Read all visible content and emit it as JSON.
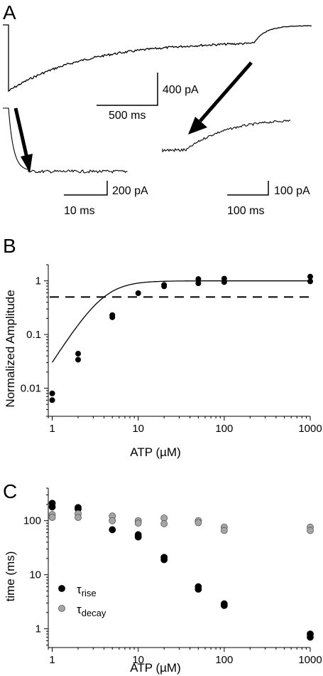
{
  "panels": {
    "A": {
      "label": "A",
      "scale_bars": [
        {
          "time": "500 ms",
          "current": "400 pA"
        },
        {
          "time": "10 ms",
          "current": "200 pA"
        },
        {
          "time": "100 ms",
          "current": "100 pA"
        }
      ]
    },
    "B": {
      "label": "B"
    },
    "C": {
      "label": "C"
    }
  },
  "chart_data": [
    {
      "type": "scatter",
      "panel": "B",
      "title": "",
      "xlabel": "ATP (µM)",
      "ylabel": "Normalized Amplitude",
      "xscale": "log",
      "yscale": "log",
      "xlim": [
        0.9,
        1000
      ],
      "ylim": [
        0.003,
        2
      ],
      "xticks": [
        1,
        10,
        100,
        1000
      ],
      "xtick_labels": [
        "1",
        "10",
        "100",
        "1000"
      ],
      "yticks": [
        0.01,
        0.1,
        1
      ],
      "ytick_labels": [
        "0.01",
        "0.1",
        "1"
      ],
      "reference_line": {
        "y": 0.5,
        "style": "dashed"
      },
      "points": [
        {
          "x": 1,
          "y": 0.008
        },
        {
          "x": 1,
          "y": 0.006
        },
        {
          "x": 2,
          "y": 0.044
        },
        {
          "x": 2,
          "y": 0.034
        },
        {
          "x": 5,
          "y": 0.23
        },
        {
          "x": 5,
          "y": 0.21
        },
        {
          "x": 10,
          "y": 0.59
        },
        {
          "x": 20,
          "y": 0.84
        },
        {
          "x": 20,
          "y": 0.79
        },
        {
          "x": 50,
          "y": 1.08
        },
        {
          "x": 50,
          "y": 0.9
        },
        {
          "x": 100,
          "y": 1.1
        },
        {
          "x": 100,
          "y": 0.95
        },
        {
          "x": 1000,
          "y": 1.2
        },
        {
          "x": 1000,
          "y": 0.98
        }
      ],
      "fit": {
        "ec50": 4,
        "hill": 2.5,
        "max": 1
      }
    },
    {
      "type": "scatter",
      "panel": "C",
      "title": "",
      "xlabel": "ATP (µM)",
      "ylabel": "time (ms)",
      "xscale": "log",
      "yscale": "log",
      "xlim": [
        0.9,
        1000
      ],
      "ylim": [
        0.45,
        400
      ],
      "xticks": [
        1,
        10,
        100,
        1000
      ],
      "xtick_labels": [
        "1",
        "10",
        "100",
        "1000"
      ],
      "yticks": [
        1,
        10,
        100
      ],
      "ytick_labels": [
        "1",
        "10",
        "100"
      ],
      "legend_position": "bottom-left",
      "series": [
        {
          "name": "τrise",
          "symbol": "τ",
          "subscript": "rise",
          "color": "#000000",
          "points": [
            {
              "x": 1,
              "y": 210
            },
            {
              "x": 1,
              "y": 180
            },
            {
              "x": 2,
              "y": 175
            },
            {
              "x": 2,
              "y": 165
            },
            {
              "x": 5,
              "y": 68
            },
            {
              "x": 10,
              "y": 55
            },
            {
              "x": 10,
              "y": 50
            },
            {
              "x": 20,
              "y": 21
            },
            {
              "x": 20,
              "y": 19
            },
            {
              "x": 50,
              "y": 6.0
            },
            {
              "x": 50,
              "y": 5.4
            },
            {
              "x": 100,
              "y": 2.9
            },
            {
              "x": 100,
              "y": 2.7
            },
            {
              "x": 1000,
              "y": 0.8
            },
            {
              "x": 1000,
              "y": 0.7
            }
          ]
        },
        {
          "name": "τdecay",
          "symbol": "τ",
          "subscript": "decay",
          "color": "#a6a6a6",
          "points": [
            {
              "x": 1,
              "y": 130
            },
            {
              "x": 1,
              "y": 115
            },
            {
              "x": 2,
              "y": 135
            },
            {
              "x": 2,
              "y": 115
            },
            {
              "x": 5,
              "y": 122
            },
            {
              "x": 5,
              "y": 100
            },
            {
              "x": 10,
              "y": 100
            },
            {
              "x": 10,
              "y": 90
            },
            {
              "x": 20,
              "y": 112
            },
            {
              "x": 20,
              "y": 88
            },
            {
              "x": 50,
              "y": 100
            },
            {
              "x": 50,
              "y": 92
            },
            {
              "x": 100,
              "y": 76
            },
            {
              "x": 100,
              "y": 66
            },
            {
              "x": 1000,
              "y": 76
            },
            {
              "x": 1000,
              "y": 66
            }
          ]
        }
      ]
    }
  ]
}
